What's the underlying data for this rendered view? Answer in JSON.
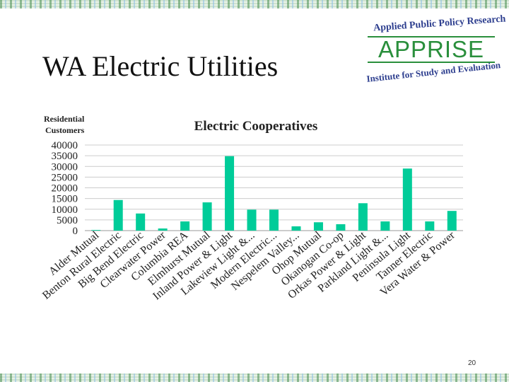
{
  "slide": {
    "title": "WA Electric Utilities",
    "page_number": "20"
  },
  "logo": {
    "top_text": "Applied Public Policy Research",
    "main_text": "APPRISE",
    "bottom_text": "Institute for Study and Evaluation"
  },
  "colors": {
    "bar": "#00cc99",
    "logo_green": "#2a8f3c",
    "logo_blue": "#2e3f8f"
  },
  "chart_data": {
    "type": "bar",
    "title": "Electric Cooperatives",
    "ylabel_lines": [
      "Residential",
      "Customers"
    ],
    "xlabel": "",
    "ylim": [
      0,
      40000
    ],
    "yticks": [
      0,
      5000,
      10000,
      15000,
      20000,
      25000,
      30000,
      35000,
      40000
    ],
    "grid": true,
    "categories": [
      "Alder Mutual",
      "Benton Rural Electric",
      "Big Bend Electric",
      "Clearwater Power",
      "Columbia REA",
      "Elmhurst Mutual",
      "Inland Power & Light",
      "Lakeview Light &...",
      "Modern Electric...",
      "Nespelem Valley...",
      "Ohop Mutual",
      "Okanogan Co-op",
      "Orkas Power & Light",
      "Parkland Light &...",
      "Peninsula Light",
      "Tanner Electric",
      "Vera Water & Power"
    ],
    "values": [
      300,
      14300,
      8000,
      1000,
      4300,
      13200,
      34800,
      9800,
      9800,
      2000,
      3900,
      3000,
      12800,
      4300,
      29000,
      4300,
      9200
    ]
  }
}
